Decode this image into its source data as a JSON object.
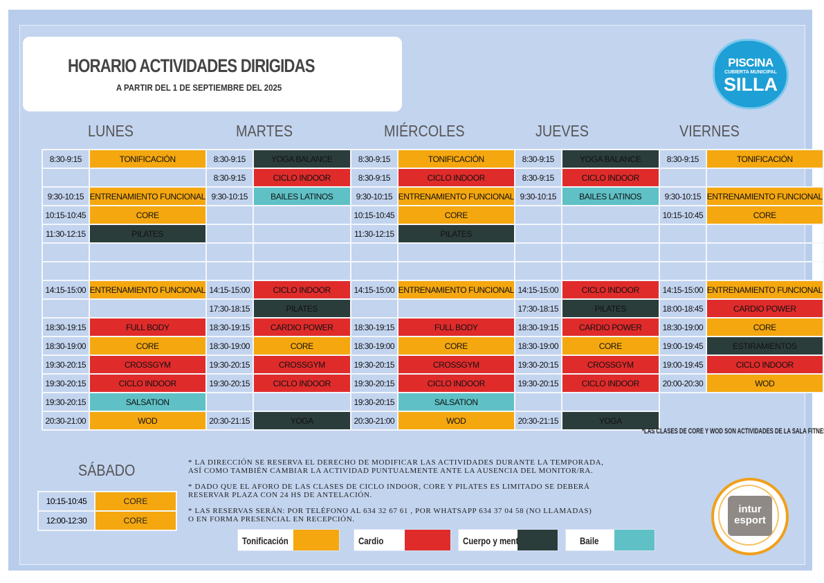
{
  "header": {
    "title": "HORARIO ACTIVIDADES DIRIGIDAS",
    "subtitle": "A PARTIR DEL 1 DE  SEPTIEMBRE  DEL 2025"
  },
  "logo": {
    "line1": "PISCINA",
    "line2": "CUBIERTA MUNICIPAL",
    "line3": "SILLA"
  },
  "days": [
    "LUNES",
    "MARTES",
    "MIÉRCOLES",
    "JUEVES",
    "VIERNES"
  ],
  "schedule": [
    [
      [
        "8:30-9:15",
        "TONIFICACIÓN",
        "ton"
      ],
      [
        "8:30-9:15",
        "YOGA BALANCE",
        "cue"
      ],
      [
        "8:30-9:15",
        "TONIFICACIÓN",
        "ton"
      ],
      [
        "8:30-9:15",
        "YOGA BALANCE",
        "cue"
      ],
      [
        "8:30-9:15",
        "TONIFICACIÓN",
        "ton"
      ]
    ],
    [
      [
        "",
        "",
        ""
      ],
      [
        "8:30-9:15",
        "CICLO INDOOR",
        "car"
      ],
      [
        "8:30-9:15",
        "CICLO INDOOR",
        "car"
      ],
      [
        "8:30-9:15",
        "CICLO INDOOR",
        "car"
      ],
      [
        "",
        "",
        ""
      ]
    ],
    [
      [
        "9:30-10:15",
        "ENTRENAMIENTO FUNCIONAL",
        "ton"
      ],
      [
        "9:30-10:15",
        "BAILES LATINOS",
        "bai"
      ],
      [
        "9:30-10:15",
        "ENTRENAMIENTO FUNCIONAL",
        "ton"
      ],
      [
        "9:30-10:15",
        "BAILES LATINOS",
        "bai"
      ],
      [
        "9:30-10:15",
        "ENTRENAMIENTO FUNCIONAL",
        "ton"
      ]
    ],
    [
      [
        "10:15-10:45",
        "CORE",
        "ton"
      ],
      [
        "",
        "",
        ""
      ],
      [
        "10:15-10:45",
        "CORE",
        "ton"
      ],
      [
        "",
        "",
        ""
      ],
      [
        "10:15-10:45",
        "CORE",
        "ton"
      ]
    ],
    [
      [
        "11:30-12:15",
        "PILATES",
        "cue"
      ],
      [
        "",
        "",
        ""
      ],
      [
        "11:30-12:15",
        "PILATES",
        "cue"
      ],
      [
        "",
        "",
        ""
      ],
      [
        "",
        "",
        ""
      ]
    ],
    [
      [
        "",
        "",
        ""
      ],
      [
        "",
        "",
        ""
      ],
      [
        "",
        "",
        ""
      ],
      [
        "",
        "",
        ""
      ],
      [
        "",
        "",
        ""
      ]
    ],
    [
      [
        "",
        "",
        ""
      ],
      [
        "",
        "",
        ""
      ],
      [
        "",
        "",
        ""
      ],
      [
        "",
        "",
        ""
      ],
      [
        "",
        "",
        ""
      ]
    ],
    [
      [
        "14:15-15:00",
        "ENTRENAMIENTO FUNCIONAL",
        "ton"
      ],
      [
        "14:15-15:00",
        "CICLO INDOOR",
        "car"
      ],
      [
        "14:15-15:00",
        "ENTRENAMIENTO FUNCIONAL",
        "ton"
      ],
      [
        "14:15-15:00",
        "CICLO INDOOR",
        "car"
      ],
      [
        "14:15-15:00",
        "ENTRENAMIENTO FUNCIONAL",
        "ton"
      ]
    ],
    [
      [
        "",
        "",
        ""
      ],
      [
        "17:30-18:15",
        "PILATES",
        "cue"
      ],
      [
        "",
        "",
        ""
      ],
      [
        "17:30-18:15",
        "PILATES",
        "cue"
      ],
      [
        "18:00-18:45",
        "CARDIO POWER",
        "car"
      ]
    ],
    [
      [
        "18:30-19:15",
        "FULL BODY",
        "car"
      ],
      [
        "18:30-19:15",
        "CARDIO POWER",
        "car"
      ],
      [
        "18:30-19:15",
        "FULL BODY",
        "car"
      ],
      [
        "18:30-19:15",
        "CARDIO POWER",
        "car"
      ],
      [
        "18:30-19:00",
        "CORE",
        "ton"
      ]
    ],
    [
      [
        "18:30-19:00",
        "CORE",
        "ton"
      ],
      [
        "18:30-19:00",
        "CORE",
        "ton"
      ],
      [
        "18:30-19:00",
        "CORE",
        "ton"
      ],
      [
        "18:30-19:00",
        "CORE",
        "ton"
      ],
      [
        "19:00-19:45",
        "ESTIRAMIENTOS",
        "cue"
      ]
    ],
    [
      [
        "19:30-20:15",
        "CROSSGYM",
        "car"
      ],
      [
        "19:30-20:15",
        "CROSSGYM",
        "car"
      ],
      [
        "19:30-20:15",
        "CROSSGYM",
        "car"
      ],
      [
        "19:30-20:15",
        "CROSSGYM",
        "car"
      ],
      [
        "19:00-19:45",
        "CICLO INDOOR",
        "car"
      ]
    ],
    [
      [
        "19:30-20:15",
        "CICLO INDOOR",
        "car"
      ],
      [
        "19:30-20:15",
        "CICLO INDOOR",
        "car"
      ],
      [
        "19:30-20:15",
        "CICLO INDOOR",
        "car"
      ],
      [
        "19:30-20:15",
        "CICLO INDOOR",
        "car"
      ],
      [
        "20:00-20:30",
        "WOD",
        "ton"
      ]
    ],
    [
      [
        "19:30-20:15",
        "SALSATION",
        "bai"
      ],
      [
        "",
        "",
        ""
      ],
      [
        "19:30-20:15",
        "SALSATION",
        "bai"
      ],
      [
        "",
        "",
        ""
      ],
      null
    ],
    [
      [
        "20:30-21:00",
        "WOD",
        "ton"
      ],
      [
        "20:30-21:15",
        "YOGA",
        "cue"
      ],
      [
        "20:30-21:00",
        "WOD",
        "ton"
      ],
      [
        "20:30-21:15",
        "YOGA",
        "cue"
      ],
      null
    ]
  ],
  "fitness_note": "*LAS CLASES DE CORE Y WOD SON  ACTIVIDADES DE LA SALA FITNESS.",
  "saturday": {
    "title": "SÁBADO",
    "rows": [
      [
        "10:15-10:45",
        "CORE"
      ],
      [
        "12:00-12:30",
        "CORE"
      ]
    ]
  },
  "notes": [
    [
      "* LA DIRECCIÓN SE RESERVA EL DERECHO DE MODIFICAR LAS ACTIVIDADES DURANTE LA TEMPORADA,",
      "  ASÍ COMO TAMBIÉN CAMBIAR LA ACTIVIDAD PUNTUALMENTE ANTE LA AUSENCIA DEL MONITOR/RA."
    ],
    [
      "* DADO QUE EL AFORO DE LAS CLASES DE CICLO INDOOR, CORE Y PILATES ES LIMITADO SE DEBERÁ",
      "RESERVAR PLAZA CON 24 HS DE ANTELACIÓN."
    ],
    [
      "* LAS RESERVAS SERÁN: POR TELÉFONO AL 634 32 67 61 , POR WHATSAPP 634 37 04 58 (NO LLAMADAS)",
      "   O EN FORMA PRESENCIAL EN RECEPCIÓN."
    ]
  ],
  "legend": [
    {
      "label": "Tonificación",
      "color": "#f5a70f"
    },
    {
      "label": "Cardio",
      "color": "#e02b2b"
    },
    {
      "label": "Cuerpo y mente",
      "color": "#2b3d3b"
    },
    {
      "label": "Baile",
      "color": "#5fc1c6"
    }
  ],
  "badge": {
    "line1": "intur",
    "line2": "esport"
  }
}
